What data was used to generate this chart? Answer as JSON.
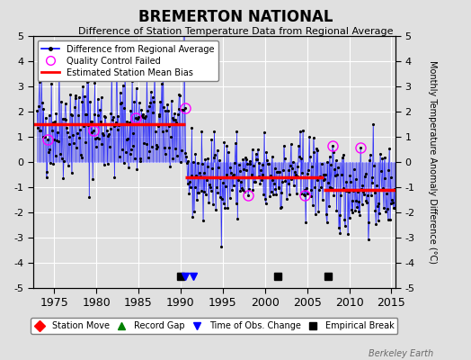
{
  "title": "BREMERTON NATIONAL",
  "subtitle": "Difference of Station Temperature Data from Regional Average",
  "ylabel": "Monthly Temperature Anomaly Difference (°C)",
  "xlabel_ticks": [
    1975,
    1980,
    1985,
    1990,
    1995,
    2000,
    2005,
    2010,
    2015
  ],
  "yticks": [
    -5,
    -4,
    -3,
    -2,
    -1,
    0,
    1,
    2,
    3,
    4,
    5
  ],
  "ylim": [
    -5,
    5
  ],
  "xlim": [
    1972.5,
    2015.5
  ],
  "background_color": "#e0e0e0",
  "bias_segments": [
    {
      "x_start": 1972.5,
      "x_end": 1990.5,
      "y": 1.5
    },
    {
      "x_start": 1990.5,
      "x_end": 2007.0,
      "y": -0.6
    },
    {
      "x_start": 2007.0,
      "x_end": 2015.5,
      "y": -1.1
    }
  ],
  "empirical_breaks": [
    1990.0,
    2001.5,
    2007.5
  ],
  "time_of_obs_changes": [
    1990.5,
    1991.5
  ],
  "watermark": "Berkeley Earth",
  "seed": 42
}
